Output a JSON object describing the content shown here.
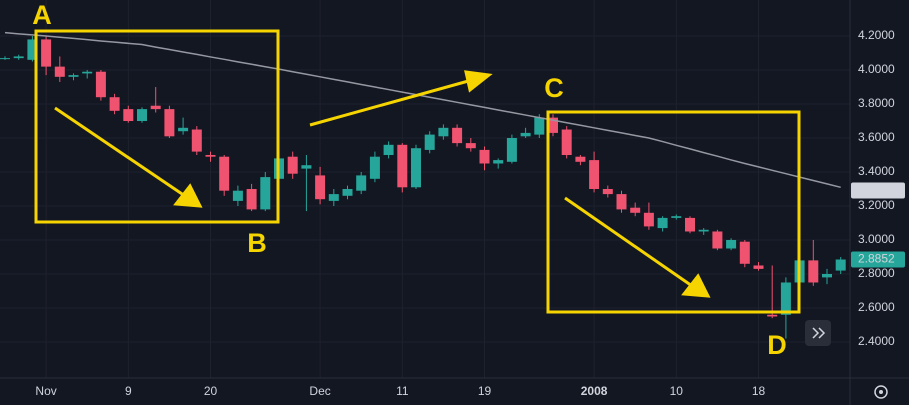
{
  "chart_data": {
    "type": "candlestick",
    "up_color": "#26a69a",
    "down_color": "#ef5370",
    "open": [
      4.07,
      4.07,
      4.06,
      4.18,
      4.02,
      3.96,
      3.98,
      3.99,
      3.84,
      3.77,
      3.7,
      3.79,
      3.77,
      3.64,
      3.65,
      3.5,
      3.49,
      3.23,
      3.3,
      3.18,
      3.36,
      3.49,
      3.42,
      3.38,
      3.23,
      3.26,
      3.29,
      3.36,
      3.5,
      3.56,
      3.31,
      3.53,
      3.61,
      3.66,
      3.57,
      3.53,
      3.45,
      3.46,
      3.61,
      3.62,
      3.72,
      3.65,
      3.49,
      3.47,
      3.3,
      3.27,
      3.19,
      3.16,
      3.07,
      3.13,
      3.13,
      3.05,
      3.05,
      2.95,
      2.99,
      2.85,
      2.56,
      2.56,
      2.75,
      2.88,
      2.78,
      2.82
    ],
    "high": [
      4.08,
      4.09,
      4.2,
      4.2,
      4.08,
      3.98,
      4.0,
      4.0,
      3.86,
      3.79,
      3.78,
      3.9,
      3.79,
      3.72,
      3.67,
      3.52,
      3.5,
      3.32,
      3.33,
      3.4,
      3.5,
      3.52,
      3.5,
      3.43,
      3.3,
      3.32,
      3.4,
      3.52,
      3.58,
      3.57,
      3.56,
      3.64,
      3.68,
      3.68,
      3.6,
      3.55,
      3.48,
      3.62,
      3.66,
      3.74,
      3.74,
      3.67,
      3.5,
      3.52,
      3.32,
      3.29,
      3.22,
      3.22,
      3.14,
      3.15,
      3.14,
      3.07,
      3.06,
      3.01,
      3.0,
      2.87,
      2.85,
      2.78,
      2.9,
      3.0,
      2.83,
      2.9
    ],
    "low": [
      4.06,
      4.06,
      4.05,
      3.97,
      3.93,
      3.94,
      3.95,
      3.82,
      3.74,
      3.69,
      3.69,
      3.75,
      3.6,
      3.62,
      3.5,
      3.46,
      3.26,
      3.2,
      3.17,
      3.17,
      3.34,
      3.36,
      3.17,
      3.21,
      3.2,
      3.24,
      3.27,
      3.34,
      3.48,
      3.28,
      3.3,
      3.51,
      3.59,
      3.55,
      3.52,
      3.41,
      3.42,
      3.45,
      3.6,
      3.6,
      3.61,
      3.48,
      3.44,
      3.28,
      3.25,
      3.16,
      3.14,
      3.06,
      3.05,
      3.12,
      3.04,
      3.03,
      2.94,
      2.94,
      2.84,
      2.82,
      2.54,
      2.42,
      2.7,
      2.73,
      2.74,
      2.8
    ],
    "close": [
      4.07,
      4.08,
      4.18,
      4.02,
      3.96,
      3.97,
      3.99,
      3.84,
      3.76,
      3.7,
      3.77,
      3.77,
      3.61,
      3.66,
      3.52,
      3.49,
      3.29,
      3.29,
      3.18,
      3.37,
      3.48,
      3.39,
      3.44,
      3.24,
      3.27,
      3.3,
      3.38,
      3.49,
      3.56,
      3.31,
      3.54,
      3.62,
      3.66,
      3.57,
      3.54,
      3.45,
      3.47,
      3.6,
      3.63,
      3.72,
      3.63,
      3.5,
      3.46,
      3.3,
      3.27,
      3.18,
      3.16,
      3.08,
      3.13,
      3.14,
      3.05,
      3.06,
      2.95,
      3.0,
      2.86,
      2.83,
      2.55,
      2.75,
      2.88,
      2.75,
      2.8,
      2.8852
    ],
    "ma": {
      "color": "#9598a1",
      "values": [
        4.22,
        4.213,
        4.207,
        4.2,
        4.193,
        4.186,
        4.179,
        4.171,
        4.164,
        4.157,
        4.15,
        4.135,
        4.121,
        4.106,
        4.092,
        4.077,
        4.063,
        4.048,
        4.034,
        4.019,
        4.005,
        3.99,
        3.975,
        3.96,
        3.945,
        3.93,
        3.915,
        3.9,
        3.885,
        3.87,
        3.855,
        3.84,
        3.825,
        3.81,
        3.795,
        3.78,
        3.765,
        3.75,
        3.735,
        3.72,
        3.705,
        3.69,
        3.675,
        3.66,
        3.645,
        3.63,
        3.615,
        3.6,
        3.579,
        3.557,
        3.536,
        3.514,
        3.493,
        3.471,
        3.45,
        3.43,
        3.41,
        3.39,
        3.37,
        3.35,
        3.33,
        3.31
      ]
    },
    "ylim": [
      2.188,
      4.412
    ],
    "yticks": [
      {
        "value": 2.4,
        "label": "2.4000"
      },
      {
        "value": 2.6,
        "label": "2.6000"
      },
      {
        "value": 2.8,
        "label": "2.8000"
      },
      {
        "value": 3,
        "label": "3.0000"
      },
      {
        "value": 3.2,
        "label": "3.2000"
      },
      {
        "value": 3.4,
        "label": "3.4000"
      },
      {
        "value": 3.6,
        "label": "3.6000"
      },
      {
        "value": 3.8,
        "label": "3.8000"
      },
      {
        "value": 4,
        "label": "4.0000"
      },
      {
        "value": 4.2,
        "label": "4.2000"
      }
    ],
    "xticks": [
      {
        "value": 3,
        "label": "Nov"
      },
      {
        "value": 9,
        "label": "9"
      },
      {
        "value": 15,
        "label": "20"
      },
      {
        "value": 23,
        "label": "Dec"
      },
      {
        "value": 29,
        "label": "11"
      },
      {
        "value": 35,
        "label": "19"
      },
      {
        "value": 43,
        "label": "2008"
      },
      {
        "value": 49,
        "label": "10"
      },
      {
        "value": 55,
        "label": "18"
      }
    ],
    "price_labels": [
      {
        "value": 3.2913,
        "color": "#d1d4dc",
        "text_color": "#131722"
      },
      {
        "value": 2.8852,
        "color": "#26a69a",
        "text_color": "#ffffff"
      }
    ],
    "annotations": [
      "A",
      "B",
      "C",
      "D"
    ],
    "grid": true
  }
}
